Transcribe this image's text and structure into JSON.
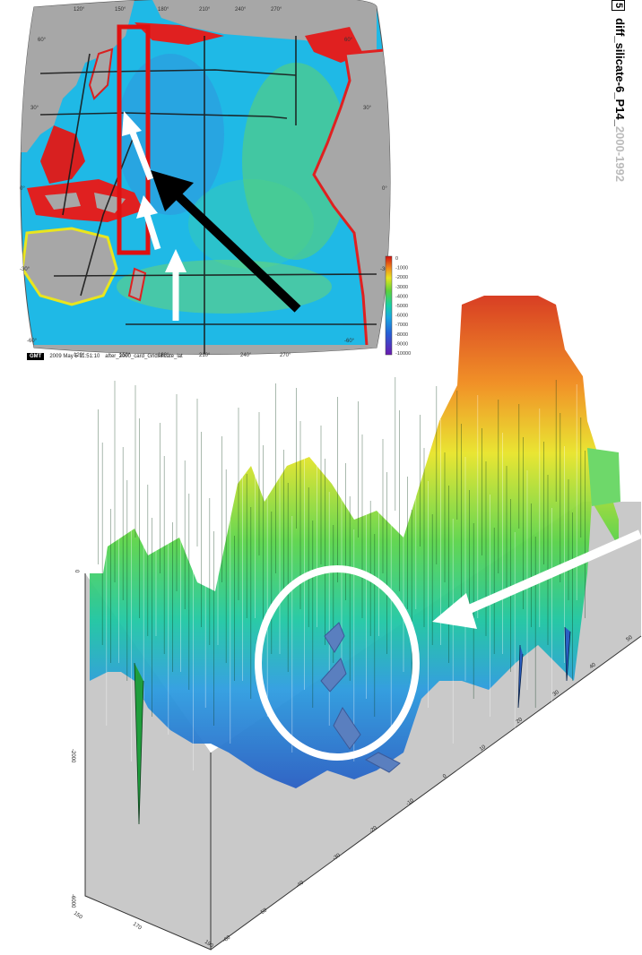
{
  "title": {
    "page_box": "5",
    "text": "diff_silicate-6_P14_",
    "faded_suffix": "2000-1992"
  },
  "map": {
    "top_lon_labels": [
      "120°",
      "150°",
      "180°",
      "210°",
      "240°",
      "270°"
    ],
    "bottom_lon_labels": [
      "120°",
      "150°",
      "180°",
      "210°",
      "240°",
      "270°"
    ],
    "left_lat_labels": [
      "60°",
      "30°",
      "0°",
      "-30°",
      "-60°"
    ],
    "right_lat_labels": [
      "60°",
      "30°",
      "0°",
      "-30°",
      "-60°"
    ],
    "colorbar_labels": [
      "0",
      "-1000",
      "-2000",
      "-3000",
      "-4000",
      "-5000",
      "-6000",
      "-7000",
      "-8000",
      "-9000",
      "-10000"
    ],
    "colors": {
      "land": "#a7a7a7",
      "ocean": "#1fb9e6",
      "shelf": "#e02020",
      "highlight_box": "#e01010"
    }
  },
  "gmt_stamp": {
    "logo": "GMT",
    "timestamp": "2009 May  5 11:51:10",
    "command": "after_2000_card_Gridsilicate_lat"
  },
  "section": {
    "depth_labels": [
      "0",
      "-2000",
      "-6000"
    ],
    "lat_labels": [
      "-60",
      "-50",
      "-40",
      "-30",
      "-20",
      "-10",
      "0",
      "10",
      "20",
      "30",
      "40",
      "50"
    ],
    "lon_labels": [
      "150",
      "170",
      "190"
    ],
    "colors": {
      "wall": "#c9c9c9",
      "circle": "#ffffff",
      "arrows": "#5a7fbf"
    }
  }
}
